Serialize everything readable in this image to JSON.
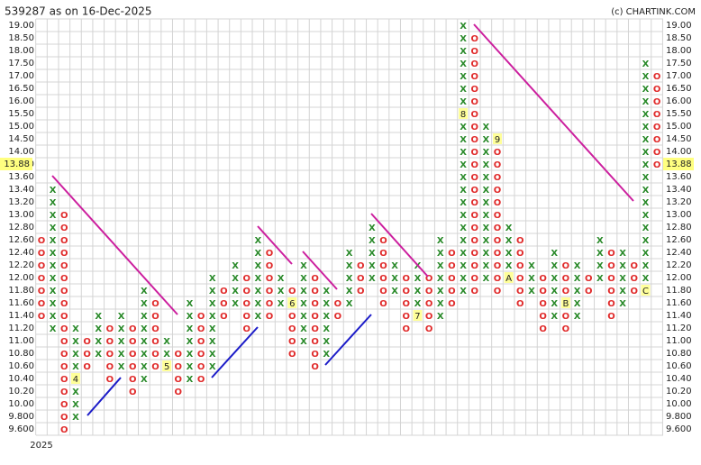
{
  "chart_data": {
    "type": "point-and-figure",
    "title": "539287 as on 16-Dec-2025",
    "source": "(c) CHARTINK.COM",
    "last_price": 13.88,
    "ylim": [
      9.6,
      19.0
    ],
    "yticks": [
      {
        "value": 19,
        "label": "19.00"
      },
      {
        "value": 18.5,
        "label": "18.50"
      },
      {
        "value": 18,
        "label": "18.00"
      },
      {
        "value": 17.5,
        "label": "17.50"
      },
      {
        "value": 17,
        "label": "17.00"
      },
      {
        "value": 16.5,
        "label": "16.50"
      },
      {
        "value": 16,
        "label": "16.00"
      },
      {
        "value": 15.5,
        "label": "15.50"
      },
      {
        "value": 15,
        "label": "15.00"
      },
      {
        "value": 14.5,
        "label": "14.50"
      },
      {
        "value": 14,
        "label": "14.00"
      },
      {
        "value": 13.8,
        "label": "13.80"
      },
      {
        "value": 13.6,
        "label": "13.60"
      },
      {
        "value": 13.4,
        "label": "13.40"
      },
      {
        "value": 13.2,
        "label": "13.20"
      },
      {
        "value": 13,
        "label": "13.00"
      },
      {
        "value": 12.8,
        "label": "12.80"
      },
      {
        "value": 12.6,
        "label": "12.60"
      },
      {
        "value": 12.4,
        "label": "12.40"
      },
      {
        "value": 12.2,
        "label": "12.20"
      },
      {
        "value": 12,
        "label": "12.00"
      },
      {
        "value": 11.8,
        "label": "11.80"
      },
      {
        "value": 11.6,
        "label": "11.60"
      },
      {
        "value": 11.4,
        "label": "11.40"
      },
      {
        "value": 11.2,
        "label": "11.20"
      },
      {
        "value": 11,
        "label": "11.00"
      },
      {
        "value": 10.8,
        "label": "10.80"
      },
      {
        "value": 10.6,
        "label": "10.60"
      },
      {
        "value": 10.4,
        "label": "10.40"
      },
      {
        "value": 10.2,
        "label": "10.20"
      },
      {
        "value": 10,
        "label": "10.00"
      },
      {
        "value": 9.8,
        "label": "9.800"
      },
      {
        "value": 9.6,
        "label": "9.600"
      }
    ],
    "categories": [
      "2025",
      null,
      null,
      null,
      null,
      null,
      null,
      null,
      null,
      null,
      null,
      null,
      null,
      null,
      null,
      null,
      null,
      null,
      null,
      null,
      null,
      null,
      null,
      null,
      null,
      null,
      null,
      null,
      null,
      null,
      null,
      null,
      null,
      null,
      null,
      null,
      null,
      null,
      null,
      null,
      null,
      null,
      null,
      null,
      null,
      null,
      null,
      null,
      null,
      null,
      null,
      null,
      null,
      null,
      null
    ],
    "colors": {
      "X": "#2a8a2a",
      "O": "#e02a2a"
    },
    "columns": [
      {
        "type": "O",
        "low": 11.4,
        "high": 12.6
      },
      {
        "type": "X",
        "low": 11.2,
        "high": 13.4
      },
      {
        "type": "O",
        "low": 9.6,
        "high": 13.0
      },
      {
        "type": "X",
        "low": 9.8,
        "high": 11.2,
        "marker": "4",
        "marker_at": 10.4
      },
      {
        "type": "O",
        "low": 10.6,
        "high": 11.0
      },
      {
        "type": "X",
        "low": 10.8,
        "high": 11.4
      },
      {
        "type": "O",
        "low": 10.4,
        "high": 11.2
      },
      {
        "type": "X",
        "low": 10.6,
        "high": 11.4
      },
      {
        "type": "O",
        "low": 10.2,
        "high": 11.2
      },
      {
        "type": "X",
        "low": 10.4,
        "high": 11.8
      },
      {
        "type": "O",
        "low": 10.6,
        "high": 11.6
      },
      {
        "type": "X",
        "low": 10.6,
        "high": 11.0,
        "marker": "5",
        "marker_at": 10.6
      },
      {
        "type": "O",
        "low": 10.2,
        "high": 10.8
      },
      {
        "type": "X",
        "low": 10.4,
        "high": 11.6
      },
      {
        "type": "O",
        "low": 10.4,
        "high": 11.4
      },
      {
        "type": "X",
        "low": 10.6,
        "high": 12.0
      },
      {
        "type": "O",
        "low": 11.4,
        "high": 11.8
      },
      {
        "type": "X",
        "low": 11.6,
        "high": 12.2
      },
      {
        "type": "O",
        "low": 11.2,
        "high": 12.0
      },
      {
        "type": "X",
        "low": 11.4,
        "high": 12.6
      },
      {
        "type": "O",
        "low": 11.4,
        "high": 12.4
      },
      {
        "type": "X",
        "low": 11.6,
        "high": 12.0
      },
      {
        "type": "O",
        "low": 10.8,
        "high": 11.8,
        "marker": "6",
        "marker_at": 11.6
      },
      {
        "type": "X",
        "low": 11.0,
        "high": 12.2
      },
      {
        "type": "O",
        "low": 10.6,
        "high": 12.0
      },
      {
        "type": "X",
        "low": 10.8,
        "high": 11.8
      },
      {
        "type": "O",
        "low": 11.4,
        "high": 11.6
      },
      {
        "type": "X",
        "low": 11.6,
        "high": 12.4
      },
      {
        "type": "O",
        "low": 11.8,
        "high": 12.2
      },
      {
        "type": "X",
        "low": 12.0,
        "high": 12.8
      },
      {
        "type": "O",
        "low": 11.6,
        "high": 12.6
      },
      {
        "type": "X",
        "low": 11.8,
        "high": 12.2
      },
      {
        "type": "O",
        "low": 11.2,
        "high": 12.0
      },
      {
        "type": "X",
        "low": 11.4,
        "high": 12.2,
        "marker": "7",
        "marker_at": 11.4
      },
      {
        "type": "O",
        "low": 11.2,
        "high": 12.0
      },
      {
        "type": "X",
        "low": 11.4,
        "high": 12.6
      },
      {
        "type": "O",
        "low": 11.6,
        "high": 12.4
      },
      {
        "type": "X",
        "low": 11.8,
        "high": 19.0,
        "marker": "8",
        "marker_at": 15.5
      },
      {
        "type": "O",
        "low": 11.8,
        "high": 18.5
      },
      {
        "type": "X",
        "low": 12.0,
        "high": 15.0
      },
      {
        "type": "O",
        "low": 11.8,
        "high": 14.5,
        "marker": "9",
        "marker_at": 14.5
      },
      {
        "type": "X",
        "low": 12.0,
        "high": 12.8,
        "marker": "A",
        "marker_at": 12.0
      },
      {
        "type": "O",
        "low": 11.6,
        "high": 12.6
      },
      {
        "type": "X",
        "low": 11.8,
        "high": 12.2
      },
      {
        "type": "O",
        "low": 11.2,
        "high": 12.0
      },
      {
        "type": "X",
        "low": 11.4,
        "high": 12.4
      },
      {
        "type": "O",
        "low": 11.2,
        "high": 12.2,
        "marker": "B",
        "marker_at": 11.6
      },
      {
        "type": "X",
        "low": 11.4,
        "high": 12.2
      },
      {
        "type": "O",
        "low": 11.8,
        "high": 12.0
      },
      {
        "type": "X",
        "low": 12.0,
        "high": 12.6
      },
      {
        "type": "O",
        "low": 11.4,
        "high": 12.4
      },
      {
        "type": "X",
        "low": 11.6,
        "high": 12.4
      },
      {
        "type": "O",
        "low": 11.8,
        "high": 12.2
      },
      {
        "type": "X",
        "low": 11.8,
        "high": 17.5,
        "marker": "C",
        "marker_at": 11.8
      },
      {
        "type": "O",
        "low": 13.8,
        "high": 17.0
      }
    ]
  }
}
